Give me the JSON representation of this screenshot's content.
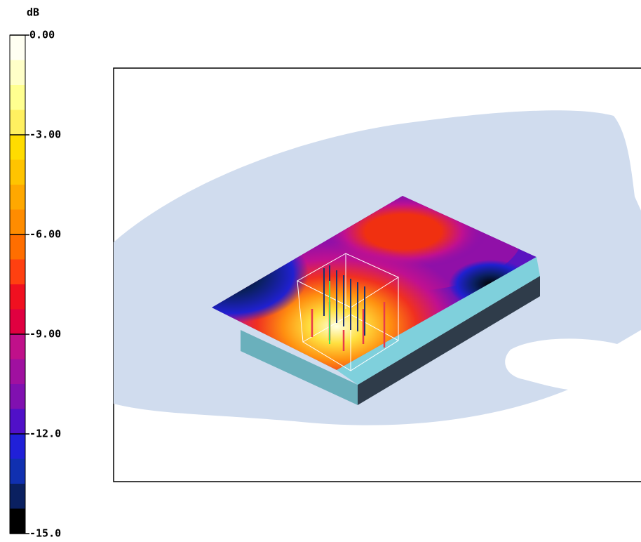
{
  "colorbar": {
    "unit": "dB",
    "ticks": [
      "0.00",
      "-3.00",
      "-6.00",
      "-9.00",
      "-12.0",
      "-15.0"
    ]
  }
}
